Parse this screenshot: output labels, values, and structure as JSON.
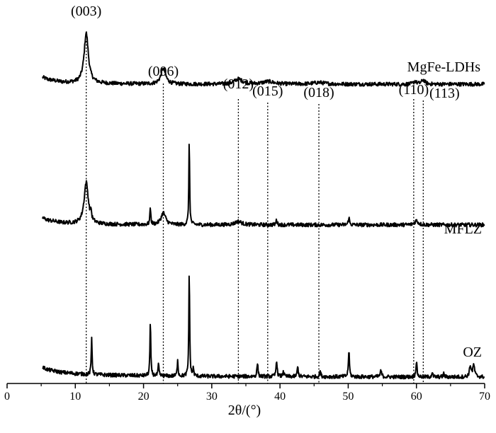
{
  "chart_data": {
    "type": "line",
    "xlabel": "2θ/(°)",
    "ylabel": "",
    "xlim": [
      0,
      70
    ],
    "x_ticks": [
      0,
      10,
      20,
      30,
      40,
      50,
      60,
      70
    ],
    "grid": false,
    "series": [
      {
        "name": "MgFe-LDHs",
        "color": "#000000",
        "background_points": [
          [
            5.2,
            0.71
          ],
          [
            6,
            0.66
          ],
          [
            8,
            0.6
          ],
          [
            10,
            0.58
          ],
          [
            13,
            0.57
          ],
          [
            16,
            0.56
          ],
          [
            20,
            0.555
          ],
          [
            25,
            0.55
          ],
          [
            30,
            0.55
          ],
          [
            40,
            0.55
          ],
          [
            50,
            0.55
          ],
          [
            60,
            0.55
          ],
          [
            68,
            0.55
          ],
          [
            70,
            0.55
          ]
        ],
        "peaks": [
          {
            "x": 11.6,
            "height": 1.18,
            "width": 0.75
          },
          {
            "x": 22.9,
            "height": 0.36,
            "width": 0.85
          },
          {
            "x": 33.9,
            "height": 0.12,
            "width": 1.4
          },
          {
            "x": 38.3,
            "height": 0.06,
            "width": 2.0
          },
          {
            "x": 45.7,
            "height": 0.04,
            "width": 2.0
          },
          {
            "x": 59.8,
            "height": 0.07,
            "width": 0.45
          },
          {
            "x": 61.0,
            "height": 0.1,
            "width": 0.6
          }
        ]
      },
      {
        "name": "MFLZ",
        "color": "#000000",
        "background_points": [
          [
            5.2,
            0.73
          ],
          [
            6,
            0.68
          ],
          [
            8,
            0.62
          ],
          [
            10,
            0.6
          ],
          [
            13,
            0.585
          ],
          [
            16,
            0.58
          ],
          [
            20,
            0.575
          ],
          [
            25,
            0.57
          ],
          [
            30,
            0.57
          ],
          [
            40,
            0.57
          ],
          [
            50,
            0.57
          ],
          [
            60,
            0.57
          ],
          [
            70,
            0.57
          ]
        ],
        "peaks": [
          {
            "x": 11.6,
            "height": 0.98,
            "width": 0.75
          },
          {
            "x": 12.3,
            "height": 0.2,
            "width": 0.15
          },
          {
            "x": 21.0,
            "height": 0.42,
            "width": 0.15
          },
          {
            "x": 22.9,
            "height": 0.28,
            "width": 0.8
          },
          {
            "x": 26.7,
            "height": 2.0,
            "width": 0.14
          },
          {
            "x": 33.9,
            "height": 0.08,
            "width": 1.2
          },
          {
            "x": 39.5,
            "height": 0.12,
            "width": 0.2
          },
          {
            "x": 50.1,
            "height": 0.18,
            "width": 0.2
          },
          {
            "x": 60.0,
            "height": 0.1,
            "width": 0.6
          }
        ]
      },
      {
        "name": "OZ",
        "color": "#000000",
        "background_points": [
          [
            5.2,
            0.3
          ],
          [
            6,
            0.24
          ],
          [
            8,
            0.18
          ],
          [
            10,
            0.15
          ],
          [
            12,
            0.13
          ],
          [
            15,
            0.115
          ],
          [
            20,
            0.1
          ],
          [
            25,
            0.09
          ],
          [
            30,
            0.085
          ],
          [
            40,
            0.08
          ],
          [
            50,
            0.075
          ],
          [
            60,
            0.07
          ],
          [
            70,
            0.07
          ]
        ],
        "peaks": [
          {
            "x": 12.4,
            "height": 0.88,
            "width": 0.15
          },
          {
            "x": 21.0,
            "height": 1.25,
            "width": 0.15
          },
          {
            "x": 22.2,
            "height": 0.28,
            "width": 0.15
          },
          {
            "x": 25.0,
            "height": 0.4,
            "width": 0.15
          },
          {
            "x": 26.7,
            "height": 2.55,
            "width": 0.14
          },
          {
            "x": 27.3,
            "height": 0.18,
            "width": 0.15
          },
          {
            "x": 36.7,
            "height": 0.32,
            "width": 0.18
          },
          {
            "x": 39.5,
            "height": 0.4,
            "width": 0.18
          },
          {
            "x": 40.5,
            "height": 0.14,
            "width": 0.18
          },
          {
            "x": 42.6,
            "height": 0.24,
            "width": 0.18
          },
          {
            "x": 45.9,
            "height": 0.14,
            "width": 0.18
          },
          {
            "x": 50.1,
            "height": 0.62,
            "width": 0.18
          },
          {
            "x": 54.8,
            "height": 0.14,
            "width": 0.25
          },
          {
            "x": 60.0,
            "height": 0.36,
            "width": 0.2
          },
          {
            "x": 62.3,
            "height": 0.1,
            "width": 0.2
          },
          {
            "x": 64.0,
            "height": 0.08,
            "width": 0.2
          },
          {
            "x": 67.9,
            "height": 0.26,
            "width": 0.3
          },
          {
            "x": 68.4,
            "height": 0.28,
            "width": 0.3
          }
        ]
      }
    ],
    "reference_lines": [
      {
        "x": 11.6,
        "label": "(003)"
      },
      {
        "x": 22.9,
        "label": "(006)"
      },
      {
        "x": 33.9,
        "label": "(012)"
      },
      {
        "x": 38.2,
        "label": "(015)"
      },
      {
        "x": 45.7,
        "label": "(018)"
      },
      {
        "x": 59.6,
        "label": "(110)"
      },
      {
        "x": 61.0,
        "label": "(113)"
      }
    ]
  }
}
